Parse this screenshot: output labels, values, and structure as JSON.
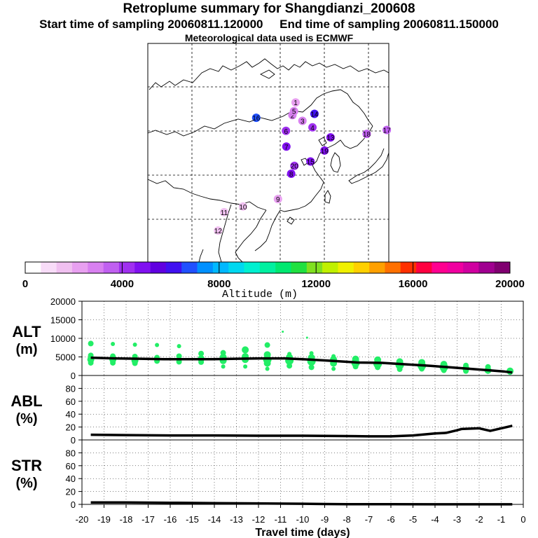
{
  "header": {
    "title": "Retroplume summary for Shangdianzi_200608",
    "sampling": "Start time of sampling 20060811.120000     End time of sampling 20060811.150000",
    "met": "Meteorological data used is ECMWF"
  },
  "colors": {
    "marker": "#22ee66",
    "line": "#000000",
    "colorbar": [
      "#ffffff",
      "#f8dcf8",
      "#f0c0f0",
      "#e8a0f0",
      "#d880f0",
      "#c060f0",
      "#a030f0",
      "#8010f0",
      "#6000e0",
      "#4010f0",
      "#2050ff",
      "#0090ff",
      "#00b8ff",
      "#00d8f0",
      "#00f0d0",
      "#00f0a0",
      "#00e870",
      "#20e040",
      "#80e020",
      "#c0f000",
      "#f0f000",
      "#ffd000",
      "#ffa000",
      "#ff7000",
      "#ff3000",
      "#ff0040",
      "#ff0090",
      "#f000a0",
      "#d000a0",
      "#a00090",
      "#800070"
    ]
  },
  "map": {
    "labels": [
      {
        "n": "1",
        "alt": 2000,
        "lon": 116.8,
        "lat": 41.5
      },
      {
        "n": "2",
        "alt": 2500,
        "lon": 116.0,
        "lat": 38.6
      },
      {
        "n": "3",
        "alt": 2800,
        "lon": 118.5,
        "lat": 37.3
      },
      {
        "n": "4",
        "alt": 3800,
        "lon": 121.0,
        "lat": 35.8
      },
      {
        "n": "5",
        "alt": 2600,
        "lon": 116.4,
        "lat": 39.5
      },
      {
        "n": "6",
        "alt": 4300,
        "lon": 114.4,
        "lat": 35.0
      },
      {
        "n": "7",
        "alt": 4600,
        "lon": 114.5,
        "lat": 31.4
      },
      {
        "n": "8",
        "alt": 4500,
        "lon": 115.7,
        "lat": 25.2
      },
      {
        "n": "9",
        "alt": 2200,
        "lon": 112.4,
        "lat": 19.4
      },
      {
        "n": "10",
        "alt": 1200,
        "lon": 103.7,
        "lat": 17.7
      },
      {
        "n": "11",
        "alt": 1600,
        "lon": 99.0,
        "lat": 16.4
      },
      {
        "n": "12",
        "alt": 1000,
        "lon": 97.5,
        "lat": 12.2
      },
      {
        "n": "13",
        "alt": 4700,
        "lon": 125.5,
        "lat": 33.5
      },
      {
        "n": "14",
        "alt": 6200,
        "lon": 121.5,
        "lat": 38.9
      },
      {
        "n": "15",
        "alt": 4700,
        "lon": 120.5,
        "lat": 28.0
      },
      {
        "n": "16",
        "alt": 6800,
        "lon": 107.0,
        "lat": 38.0
      },
      {
        "n": "17",
        "alt": 3500,
        "lon": 139.5,
        "lat": 35.2
      },
      {
        "n": "18",
        "alt": 3300,
        "lon": 134.5,
        "lat": 34.3
      },
      {
        "n": "19",
        "alt": 4800,
        "lon": 124.0,
        "lat": 30.5
      },
      {
        "n": "20",
        "alt": 4000,
        "lon": 116.5,
        "lat": 27.0
      }
    ]
  },
  "colorbar": {
    "ticks": [
      "0",
      "4000",
      "8000",
      "12000",
      "16000",
      "20000"
    ],
    "label": "Altitude (m)"
  },
  "chart_data": [
    {
      "type": "line",
      "title": "ALT (m)",
      "ylabel_line1": "ALT",
      "ylabel_line2": "(m)",
      "ylim": [
        0,
        20000
      ],
      "yticks": [
        "0",
        "5000",
        "10000",
        "15000",
        "20000"
      ],
      "x": [
        -19.6,
        -18.5,
        -17.4,
        -16.3,
        -15.2,
        -14.1,
        -13.0,
        -11.9,
        -10.8,
        -9.7,
        -8.6,
        -7.5,
        -6.4,
        -5.3,
        -4.2,
        -3.1,
        -2.0,
        -0.9,
        -0.5
      ],
      "values": [
        4800,
        4600,
        4500,
        4400,
        4400,
        4400,
        4500,
        4600,
        4600,
        4300,
        3900,
        3500,
        3400,
        3000,
        2600,
        2100,
        1600,
        1100,
        800
      ],
      "scatter": {
        "x": [
          -19.6,
          -19.6,
          -19.6,
          -19.6,
          -18.6,
          -18.6,
          -18.6,
          -18.6,
          -17.6,
          -17.6,
          -17.6,
          -17.6,
          -16.6,
          -16.6,
          -16.6,
          -15.6,
          -15.6,
          -15.6,
          -14.6,
          -14.6,
          -14.6,
          -13.6,
          -13.6,
          -13.6,
          -13.6,
          -12.6,
          -12.6,
          -12.6,
          -12.6,
          -11.6,
          -11.6,
          -11.6,
          -11.6,
          -11.6,
          -10.6,
          -10.6,
          -10.6,
          -10.6,
          -9.6,
          -9.6,
          -9.6,
          -9.6,
          -8.6,
          -8.6,
          -8.6,
          -8.6,
          -7.6,
          -7.6,
          -7.6,
          -6.6,
          -6.6,
          -6.6,
          -5.6,
          -5.6,
          -5.6,
          -4.6,
          -4.6,
          -4.6,
          -3.6,
          -3.6,
          -3.6,
          -2.6,
          -2.6,
          -2.6,
          -1.6,
          -1.6,
          -1.6,
          -0.6,
          -0.6,
          -10.9,
          -9.8
        ],
        "y": [
          8600,
          5400,
          4300,
          3400,
          8500,
          5200,
          4300,
          3400,
          8300,
          5100,
          4000,
          3300,
          8200,
          4800,
          3900,
          7900,
          5200,
          3700,
          5900,
          4500,
          3600,
          6100,
          4900,
          4000,
          2400,
          6900,
          5100,
          4300,
          2400,
          8200,
          5600,
          4300,
          3300,
          1800,
          5800,
          4900,
          4000,
          2600,
          6000,
          4800,
          3800,
          2200,
          5200,
          4300,
          3300,
          1800,
          4400,
          3400,
          2400,
          4200,
          3100,
          2200,
          3700,
          2800,
          1700,
          3500,
          2600,
          1800,
          3000,
          2200,
          1400,
          2700,
          1900,
          1200,
          2300,
          1400,
          1000,
          1200,
          900,
          11800,
          10200
        ],
        "r": [
          4,
          4,
          5,
          4,
          3,
          4,
          5,
          4,
          3,
          4,
          5,
          4,
          3,
          4,
          4,
          3,
          4,
          4,
          4,
          5,
          4,
          4,
          5,
          5,
          3,
          5,
          5,
          5,
          3,
          4,
          5,
          6,
          5,
          3,
          3,
          5,
          6,
          4,
          3,
          5,
          6,
          4,
          3,
          5,
          5,
          3,
          5,
          6,
          4,
          5,
          6,
          4,
          5,
          6,
          4,
          5,
          6,
          4,
          5,
          6,
          4,
          4,
          5,
          4,
          4,
          5,
          3,
          5,
          4,
          1.5,
          1.5
        ]
      }
    },
    {
      "type": "line",
      "title": "ABL (%)",
      "ylabel_line1": "ABL",
      "ylabel_line2": "(%)",
      "ylim": [
        0,
        100
      ],
      "yticks": [
        "0",
        "20",
        "40",
        "60",
        "80"
      ],
      "x": [
        -19.6,
        -18,
        -16,
        -14,
        -12,
        -10,
        -8,
        -7,
        -6,
        -5,
        -4,
        -3.5,
        -3,
        -2.8,
        -2,
        -1.5,
        -1,
        -0.5
      ],
      "values": [
        8,
        7.5,
        7,
        7,
        6.5,
        6.5,
        6,
        5.5,
        5.5,
        7,
        10,
        11,
        15,
        17,
        18,
        14,
        18,
        22
      ]
    },
    {
      "type": "line",
      "title": "STR (%)",
      "ylabel_line1": "STR",
      "ylabel_line2": "(%)",
      "ylim": [
        0,
        100
      ],
      "yticks": [
        "0",
        "20",
        "40",
        "60",
        "80"
      ],
      "x": [
        -19.6,
        -18,
        -16,
        -14,
        -12,
        -10,
        -9,
        -8,
        -6,
        -4,
        -2,
        -0.5
      ],
      "values": [
        3,
        3,
        2.5,
        2,
        1.5,
        1,
        0.5,
        0.3,
        0.2,
        0.1,
        0.1,
        0.1
      ],
      "xticks": [
        "-20",
        "-19",
        "-18",
        "-17",
        "-16",
        "-15",
        "-14",
        "-13",
        "-12",
        "-11",
        "-10",
        "-9",
        "-8",
        "-7",
        "-6",
        "-5",
        "-4",
        "-3",
        "-2",
        "-1",
        "0"
      ],
      "xlabel": "Travel time (days)"
    }
  ]
}
